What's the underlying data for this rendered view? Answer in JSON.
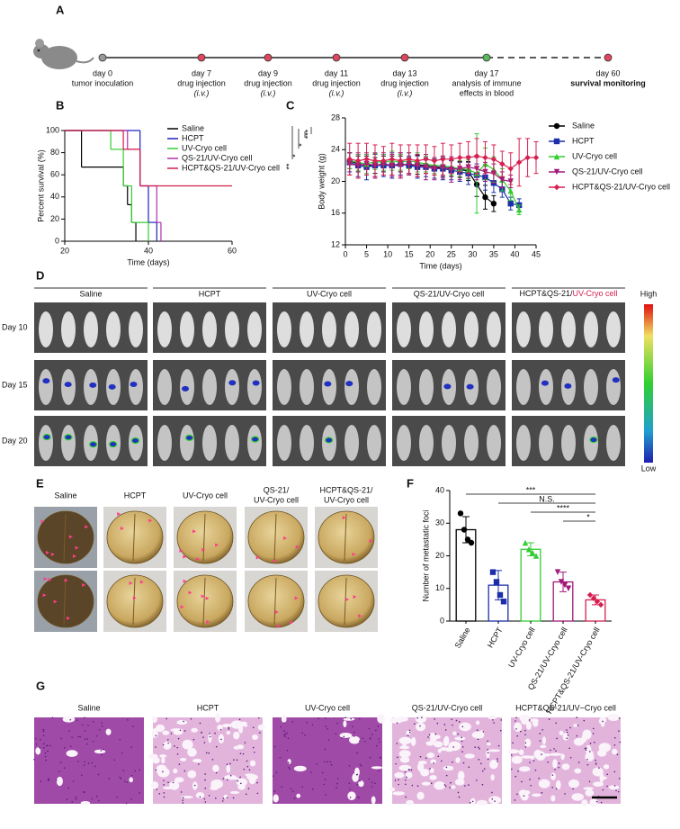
{
  "panel_labels": [
    "A",
    "B",
    "C",
    "D",
    "E",
    "F",
    "G"
  ],
  "timeline": {
    "points": [
      {
        "day": "day 0",
        "lines": [
          "tumor inoculation"
        ],
        "color": "#999999"
      },
      {
        "day": "day 7",
        "lines": [
          "drug injection",
          "(i.v.)"
        ],
        "color": "#e0475f"
      },
      {
        "day": "day 9",
        "lines": [
          "drug injection",
          "(i.v.)"
        ],
        "color": "#e0475f"
      },
      {
        "day": "day 11",
        "lines": [
          "drug injection",
          "(i.v.)"
        ],
        "color": "#e0475f"
      },
      {
        "day": "day 13",
        "lines": [
          "drug injection",
          "(i.v.)"
        ],
        "color": "#e0475f"
      },
      {
        "day": "day 17",
        "lines": [
          "analysis of immune",
          "effects in blood"
        ],
        "color": "#5cb85c"
      },
      {
        "day": "day 60",
        "lines": [
          "survival monitoring"
        ],
        "color": "#e0475f"
      }
    ]
  },
  "chart_data": [
    {
      "type": "step",
      "xlabel": "Time (days)",
      "ylabel": "Percent survival (%)",
      "xlim": [
        20,
        60
      ],
      "xticks": [
        20,
        40,
        60
      ],
      "ylim": [
        0,
        100
      ],
      "yticks": [
        0,
        20,
        40,
        60,
        80,
        100
      ],
      "series": [
        {
          "name": "Saline",
          "color": "#000000",
          "x": [
            20,
            24,
            34,
            35,
            36,
            37
          ],
          "values": [
            100,
            67,
            50,
            33,
            17,
            0
          ]
        },
        {
          "name": "HCPT",
          "color": "#2020c0",
          "x": [
            20,
            38,
            40,
            42
          ],
          "values": [
            100,
            50,
            17,
            0
          ]
        },
        {
          "name": "UV-Cryo cell",
          "color": "#33cc33",
          "x": [
            20,
            31,
            34,
            36,
            40
          ],
          "values": [
            100,
            83,
            50,
            17,
            0
          ]
        },
        {
          "name": "QS-21/UV-Cryo cell",
          "color": "#b030b0",
          "x": [
            20,
            35,
            38,
            42,
            43
          ],
          "values": [
            100,
            83,
            50,
            17,
            0
          ]
        },
        {
          "name": "HCPT&QS-21/UV-Cryo cell",
          "color": "#d0204a",
          "x": [
            20,
            34,
            38,
            60
          ],
          "values": [
            100,
            83,
            50,
            50
          ]
        }
      ],
      "annotations": [
        "**",
        "*",
        "*",
        "***"
      ]
    },
    {
      "type": "line",
      "xlabel": "Time (days)",
      "ylabel": "Body weight (g)",
      "xlim": [
        0,
        45
      ],
      "xticks": [
        0,
        5,
        10,
        15,
        20,
        25,
        30,
        35,
        40,
        45
      ],
      "ylim": [
        12,
        28
      ],
      "yticks": [
        12,
        16,
        20,
        24,
        28
      ],
      "x": [
        1,
        3,
        5,
        7,
        9,
        11,
        13,
        15,
        17,
        19,
        21,
        23,
        25,
        27,
        29,
        31,
        33,
        35,
        37,
        39,
        41,
        43,
        45
      ],
      "series": [
        {
          "name": "Saline",
          "color": "#000000",
          "marker": "circle",
          "values": [
            22.6,
            22.2,
            22.0,
            22.0,
            22.2,
            22.0,
            22.2,
            22.0,
            22.1,
            22.0,
            21.8,
            21.8,
            21.6,
            21.5,
            21.3,
            19.6,
            18.0,
            17.2,
            null,
            null,
            null,
            null,
            null
          ],
          "errors": [
            1.0,
            1.0,
            1.2,
            1.0,
            1.0,
            1.2,
            1.0,
            1.0,
            1.2,
            1.0,
            1.0,
            1.2,
            1.0,
            1.0,
            1.2,
            1.5,
            1.5,
            1.0,
            null,
            null,
            null,
            null,
            null
          ]
        },
        {
          "name": "HCPT",
          "color": "#1c2fa8",
          "marker": "square",
          "values": [
            22.4,
            22.0,
            21.8,
            22.0,
            22.0,
            22.0,
            22.2,
            22.0,
            21.8,
            21.8,
            21.6,
            21.6,
            21.4,
            21.2,
            21.0,
            20.8,
            20.5,
            19.8,
            19.0,
            17.2,
            17.0,
            null,
            null
          ],
          "errors": [
            1.2,
            1.4,
            1.6,
            1.4,
            1.4,
            1.6,
            1.4,
            1.2,
            1.4,
            1.2,
            1.2,
            1.4,
            1.2,
            1.2,
            1.4,
            1.4,
            1.6,
            1.2,
            1.0,
            0.8,
            0.8,
            null,
            null
          ]
        },
        {
          "name": "UV-Cryo cell",
          "color": "#33cc33",
          "marker": "triangle",
          "values": [
            22.6,
            22.4,
            22.2,
            22.5,
            22.4,
            22.6,
            22.4,
            22.6,
            22.4,
            22.2,
            22.0,
            22.0,
            21.8,
            21.6,
            21.5,
            21.0,
            22.2,
            21.5,
            20.2,
            18.8,
            16.4,
            null,
            null
          ],
          "errors": [
            1.0,
            1.0,
            1.2,
            1.0,
            1.0,
            1.2,
            1.0,
            1.0,
            1.2,
            1.0,
            1.0,
            1.2,
            1.0,
            1.0,
            1.2,
            5.0,
            2.0,
            1.6,
            1.4,
            1.2,
            0.6,
            null,
            null
          ]
        },
        {
          "name": "QS-21/UV-Cryo cell",
          "color": "#a0197a",
          "marker": "triangle-down",
          "values": [
            22.2,
            22.0,
            22.2,
            22.0,
            22.2,
            22.0,
            22.0,
            22.2,
            22.0,
            21.8,
            21.6,
            21.8,
            21.5,
            21.6,
            21.8,
            21.6,
            21.2,
            21.0,
            20.2,
            20.0,
            null,
            null,
            null
          ],
          "errors": [
            1.4,
            1.6,
            1.4,
            1.6,
            1.4,
            1.4,
            1.6,
            1.4,
            1.4,
            1.6,
            1.4,
            1.4,
            1.6,
            1.4,
            1.4,
            1.4,
            1.2,
            1.2,
            1.0,
            0.8,
            null,
            null,
            null
          ]
        },
        {
          "name": "HCPT&QS-21/UV-Cryo cell",
          "color": "#d62050",
          "marker": "diamond",
          "values": [
            22.8,
            22.6,
            22.8,
            22.6,
            22.6,
            22.8,
            22.6,
            22.8,
            22.6,
            22.8,
            22.6,
            22.8,
            22.8,
            23.0,
            23.0,
            23.2,
            23.0,
            22.8,
            22.2,
            21.6,
            22.4,
            23.0,
            23.0
          ],
          "errors": [
            2.0,
            2.2,
            2.0,
            2.0,
            1.8,
            2.0,
            2.0,
            1.8,
            2.0,
            1.8,
            1.8,
            2.0,
            1.8,
            1.8,
            2.0,
            2.2,
            2.0,
            1.8,
            1.6,
            2.0,
            3.0,
            2.4,
            2.0
          ]
        }
      ]
    },
    {
      "type": "bar",
      "ylabel": "Number of metastatic foci",
      "ylim": [
        0,
        40
      ],
      "yticks": [
        0,
        10,
        20,
        30,
        40
      ],
      "categories": [
        "Saline",
        "HCPT",
        "UV-Cryo cell",
        "QS-21/UV-Cryo cell",
        "HCPT&QS-21/UV-Cryo cell"
      ],
      "colors": [
        "#000000",
        "#1c2fa8",
        "#33cc33",
        "#a0197a",
        "#d62050"
      ],
      "values": [
        28,
        11,
        22,
        12,
        6.5
      ],
      "errors": [
        4,
        4.5,
        2,
        3,
        1.5
      ],
      "points": [
        [
          33,
          28,
          25,
          24
        ],
        [
          15,
          12,
          8,
          6
        ],
        [
          24,
          22,
          21,
          20
        ],
        [
          15,
          12,
          11,
          10
        ],
        [
          8,
          7,
          6,
          5
        ]
      ],
      "comparisons": [
        "***",
        "N.S.",
        "****",
        "*"
      ]
    }
  ],
  "imaging": {
    "groups": [
      [
        "Saline"
      ],
      [
        "HCPT"
      ],
      [
        "UV-Cryo cell"
      ],
      [
        "QS-21/UV-Cryo cell"
      ],
      [
        "HCPT&QS-21/",
        "UV-Cryo cell"
      ]
    ],
    "days": [
      "Day 10",
      "Day 15",
      "Day 20"
    ],
    "scale_high": "High",
    "scale_low": "Low"
  },
  "lungs": {
    "groups": [
      [
        "Saline"
      ],
      [
        "HCPT"
      ],
      [
        "UV-Cryo cell"
      ],
      [
        "QS-21/",
        "UV-Cryo cell"
      ],
      [
        "HCPT&QS-21/",
        "UV-Cryo cell"
      ]
    ]
  },
  "histology": {
    "groups": [
      "Saline",
      "HCPT",
      "UV-Cryo cell",
      "QS-21/UV-Cryo cell",
      "HCPT&QS-21/UV−Cryo cell"
    ]
  }
}
